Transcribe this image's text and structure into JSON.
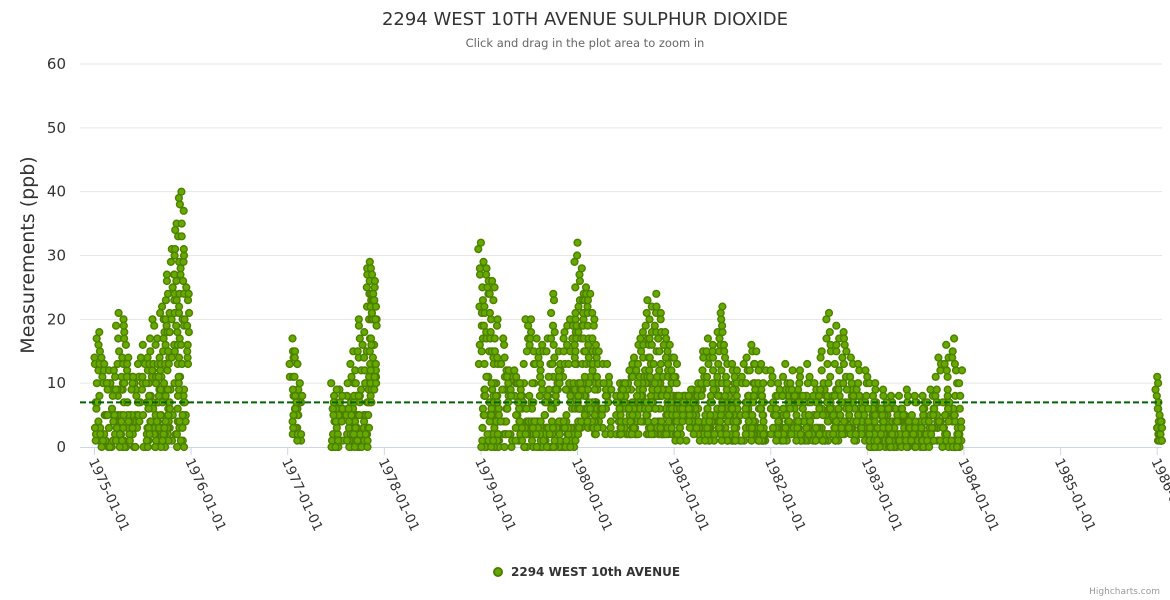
{
  "chart_data": {
    "type": "scatter",
    "title": "2294 WEST 10TH AVENUE SULPHUR DIOXIDE",
    "subtitle": "Click and drag in the plot area to zoom in",
    "ylabel": "Measurements (ppb)",
    "xlabel": "",
    "ylim": [
      0,
      60
    ],
    "yticks": [
      0,
      10,
      20,
      30,
      40,
      50,
      60
    ],
    "xlim": [
      1974.85,
      1986.05
    ],
    "xticks": [
      {
        "value": 1975.0,
        "label": "1975-01-01"
      },
      {
        "value": 1976.0,
        "label": "1976-01-01"
      },
      {
        "value": 1977.0,
        "label": "1977-01-01"
      },
      {
        "value": 1978.0,
        "label": "1978-01-01"
      },
      {
        "value": 1979.0,
        "label": "1979-01-01"
      },
      {
        "value": 1980.0,
        "label": "1980-01-01"
      },
      {
        "value": 1981.0,
        "label": "1981-01-01"
      },
      {
        "value": 1982.0,
        "label": "1982-01-01"
      },
      {
        "value": 1983.0,
        "label": "1983-01-01"
      },
      {
        "value": 1984.0,
        "label": "1984-01-01"
      },
      {
        "value": 1985.0,
        "label": "1985-01-01"
      },
      {
        "value": 1986.0,
        "label": "1986-01-01"
      }
    ],
    "reference_line": {
      "value": 7,
      "color": "#006400",
      "style": "dashed"
    },
    "grid": true,
    "legend_position": "bottom-center",
    "series": [
      {
        "name": "2294 WEST 10th AVENUE",
        "color": "#66aa00",
        "segments": [
          {
            "start": 1975.0,
            "end": 1975.95,
            "max_values": [
              14,
              18,
              13,
              12,
              12,
              21,
              20,
              14,
              11,
              13,
              16,
              14,
              20,
              17,
              22,
              27,
              31,
              35,
              40,
              25
            ],
            "typical_range": [
              0,
              12
            ]
          },
          {
            "start": 1977.05,
            "end": 1977.15,
            "max_values": [
              17,
              15,
              13,
              10,
              8
            ],
            "typical_range": [
              1,
              10
            ]
          },
          {
            "start": 1977.45,
            "end": 1977.85,
            "max_values": [
              10,
              9,
              8,
              10,
              15,
              20,
              18,
              15
            ],
            "typical_range": [
              0,
              9
            ]
          },
          {
            "start": 1977.85,
            "end": 1977.92,
            "max_values": [
              29,
              28,
              27,
              24,
              23,
              20,
              19
            ],
            "typical_range": [
              7,
              19
            ]
          },
          {
            "start": 1979.0,
            "end": 1979.98,
            "max_values": [
              32,
              28,
              26,
              20,
              17,
              12,
              12,
              10,
              20,
              20,
              17,
              16,
              17,
              24,
              15,
              18,
              20,
              20
            ],
            "typical_range": [
              0,
              12
            ]
          },
          {
            "start": 1980.0,
            "end": 1980.35,
            "max_values": [
              32,
              28,
              25,
              24,
              20,
              15,
              13,
              13,
              9
            ],
            "typical_range": [
              2,
              12
            ]
          },
          {
            "start": 1980.4,
            "end": 1981.0,
            "max_values": [
              8,
              8,
              10,
              12,
              14,
              16,
              18,
              23,
              22,
              24,
              21,
              18,
              16,
              14
            ],
            "typical_range": [
              2,
              10
            ]
          },
          {
            "start": 1981.0,
            "end": 1981.95,
            "max_values": [
              11,
              8,
              7,
              8,
              7,
              10,
              15,
              17,
              16,
              18,
              22,
              13,
              13,
              12,
              11,
              14,
              16,
              15,
              13,
              12
            ],
            "typical_range": [
              1,
              9
            ]
          },
          {
            "start": 1982.0,
            "end": 1982.98,
            "max_values": [
              12,
              10,
              13,
              12,
              12,
              13,
              10,
              15,
              21,
              19,
              18,
              14,
              13,
              12
            ],
            "typical_range": [
              1,
              9
            ]
          },
          {
            "start": 1983.0,
            "end": 1983.98,
            "max_values": [
              11,
              10,
              9,
              8,
              8,
              9,
              8,
              8,
              9,
              14,
              16,
              17,
              12
            ],
            "typical_range": [
              0,
              7
            ]
          },
          {
            "start": 1986.0,
            "end": 1986.05,
            "max_values": [
              11,
              7,
              5,
              4,
              3
            ],
            "typical_range": [
              1,
              5
            ]
          }
        ]
      }
    ]
  },
  "credits": "Highcharts.com"
}
